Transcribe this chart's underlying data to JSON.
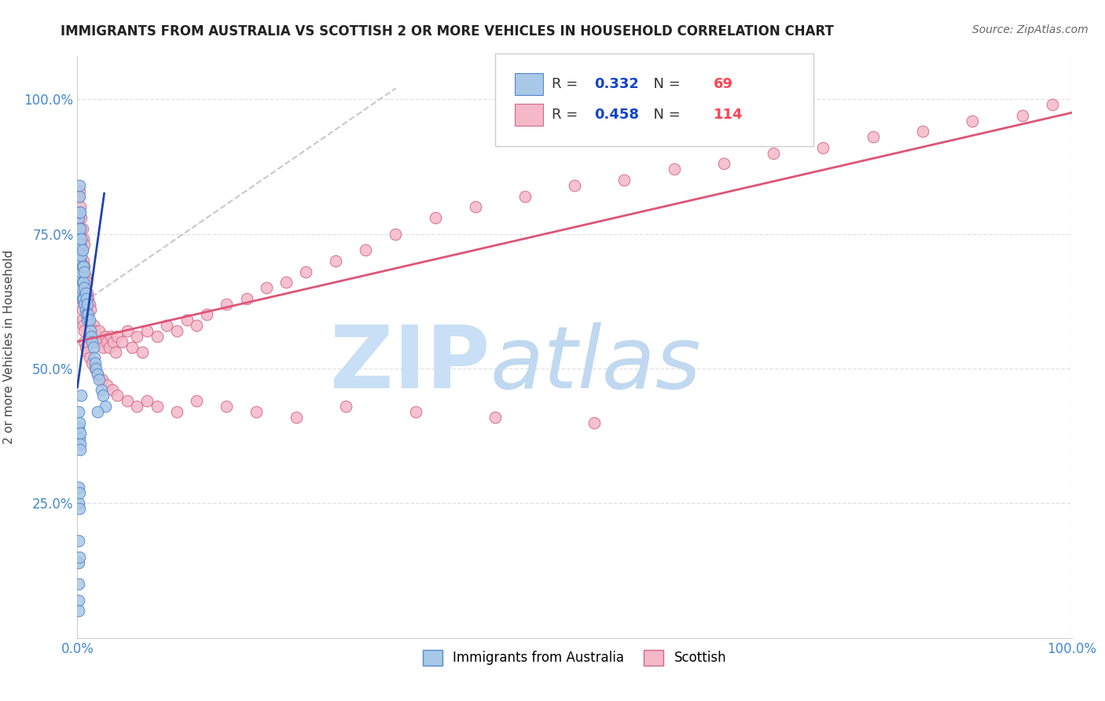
{
  "title": "IMMIGRANTS FROM AUSTRALIA VS SCOTTISH 2 OR MORE VEHICLES IN HOUSEHOLD CORRELATION CHART",
  "source": "Source: ZipAtlas.com",
  "ylabel": "2 or more Vehicles in Household",
  "R1": "0.332",
  "N1": "69",
  "R2": "0.458",
  "N2": "114",
  "color_blue_fill": "#a8c8e8",
  "color_blue_edge": "#5588cc",
  "color_pink_fill": "#f5b8c8",
  "color_pink_edge": "#d06888",
  "color_blue_line": "#2244aa",
  "color_pink_line": "#dd5577",
  "color_dashed": "#bbbbbb",
  "color_axis_label": "#4488cc",
  "color_title": "#222222",
  "color_source": "#666666",
  "color_grid": "#dddddd",
  "color_watermark_zip": "#c8dff5",
  "color_watermark_atlas": "#c0d8f0",
  "background_color": "#ffffff",
  "legend_label1": "Immigrants from Australia",
  "legend_label2": "Scottish",
  "aus_x": [
    0.001,
    0.001,
    0.001,
    0.001,
    0.002,
    0.002,
    0.002,
    0.002,
    0.002,
    0.002,
    0.003,
    0.003,
    0.003,
    0.003,
    0.003,
    0.003,
    0.004,
    0.004,
    0.004,
    0.004,
    0.005,
    0.005,
    0.005,
    0.005,
    0.006,
    0.006,
    0.006,
    0.007,
    0.007,
    0.007,
    0.008,
    0.008,
    0.009,
    0.009,
    0.01,
    0.01,
    0.011,
    0.012,
    0.013,
    0.014,
    0.015,
    0.016,
    0.017,
    0.018,
    0.019,
    0.02,
    0.022,
    0.024,
    0.026,
    0.028,
    0.001,
    0.001,
    0.002,
    0.002,
    0.003,
    0.003,
    0.003,
    0.001,
    0.001,
    0.002,
    0.002,
    0.004,
    0.02,
    0.001,
    0.001,
    0.002,
    0.001,
    0.001,
    0.001
  ],
  "aus_y": [
    0.68,
    0.72,
    0.75,
    0.78,
    0.7,
    0.73,
    0.76,
    0.79,
    0.82,
    0.84,
    0.64,
    0.67,
    0.7,
    0.73,
    0.76,
    0.79,
    0.65,
    0.68,
    0.71,
    0.74,
    0.63,
    0.66,
    0.69,
    0.72,
    0.63,
    0.66,
    0.69,
    0.62,
    0.65,
    0.68,
    0.61,
    0.64,
    0.6,
    0.63,
    0.59,
    0.62,
    0.6,
    0.59,
    0.57,
    0.56,
    0.55,
    0.54,
    0.52,
    0.51,
    0.5,
    0.49,
    0.48,
    0.46,
    0.45,
    0.43,
    0.42,
    0.39,
    0.4,
    0.37,
    0.38,
    0.36,
    0.35,
    0.28,
    0.25,
    0.27,
    0.24,
    0.45,
    0.42,
    0.18,
    0.14,
    0.15,
    0.1,
    0.07,
    0.05
  ],
  "scot_x": [
    0.001,
    0.001,
    0.002,
    0.002,
    0.002,
    0.003,
    0.003,
    0.003,
    0.004,
    0.004,
    0.004,
    0.005,
    0.005,
    0.005,
    0.006,
    0.006,
    0.006,
    0.007,
    0.007,
    0.007,
    0.008,
    0.008,
    0.009,
    0.009,
    0.01,
    0.01,
    0.011,
    0.011,
    0.012,
    0.012,
    0.013,
    0.013,
    0.014,
    0.015,
    0.016,
    0.017,
    0.018,
    0.019,
    0.02,
    0.021,
    0.022,
    0.024,
    0.026,
    0.028,
    0.03,
    0.032,
    0.034,
    0.036,
    0.038,
    0.04,
    0.045,
    0.05,
    0.055,
    0.06,
    0.065,
    0.07,
    0.08,
    0.09,
    0.1,
    0.11,
    0.12,
    0.13,
    0.15,
    0.17,
    0.19,
    0.21,
    0.23,
    0.26,
    0.29,
    0.32,
    0.36,
    0.4,
    0.45,
    0.5,
    0.55,
    0.6,
    0.65,
    0.7,
    0.75,
    0.8,
    0.85,
    0.9,
    0.95,
    0.98,
    0.003,
    0.004,
    0.005,
    0.005,
    0.006,
    0.007,
    0.007,
    0.008,
    0.01,
    0.012,
    0.015,
    0.018,
    0.02,
    0.025,
    0.03,
    0.035,
    0.04,
    0.05,
    0.06,
    0.07,
    0.08,
    0.1,
    0.12,
    0.15,
    0.18,
    0.22,
    0.27,
    0.34,
    0.42,
    0.52
  ],
  "scot_y": [
    0.78,
    0.82,
    0.75,
    0.79,
    0.83,
    0.72,
    0.76,
    0.8,
    0.7,
    0.74,
    0.78,
    0.68,
    0.72,
    0.76,
    0.67,
    0.7,
    0.74,
    0.65,
    0.69,
    0.73,
    0.63,
    0.67,
    0.62,
    0.66,
    0.6,
    0.64,
    0.59,
    0.63,
    0.58,
    0.62,
    0.57,
    0.61,
    0.56,
    0.57,
    0.58,
    0.57,
    0.56,
    0.55,
    0.56,
    0.55,
    0.57,
    0.55,
    0.54,
    0.56,
    0.55,
    0.54,
    0.56,
    0.55,
    0.53,
    0.56,
    0.55,
    0.57,
    0.54,
    0.56,
    0.53,
    0.57,
    0.56,
    0.58,
    0.57,
    0.59,
    0.58,
    0.6,
    0.62,
    0.63,
    0.65,
    0.66,
    0.68,
    0.7,
    0.72,
    0.75,
    0.78,
    0.8,
    0.82,
    0.84,
    0.85,
    0.87,
    0.88,
    0.9,
    0.91,
    0.93,
    0.94,
    0.96,
    0.97,
    0.99,
    0.65,
    0.63,
    0.61,
    0.59,
    0.58,
    0.57,
    0.55,
    0.54,
    0.53,
    0.52,
    0.51,
    0.5,
    0.49,
    0.48,
    0.47,
    0.46,
    0.45,
    0.44,
    0.43,
    0.44,
    0.43,
    0.42,
    0.44,
    0.43,
    0.42,
    0.41,
    0.43,
    0.42,
    0.41,
    0.4
  ],
  "aus_line_x": [
    0.0,
    0.027
  ],
  "aus_line_y": [
    0.465,
    0.825
  ],
  "scot_line_x": [
    0.0,
    1.0
  ],
  "scot_line_y": [
    0.55,
    0.975
  ],
  "dash_line_x": [
    0.0,
    0.32
  ],
  "dash_line_y": [
    0.615,
    1.02
  ],
  "xlim": [
    0.0,
    1.0
  ],
  "ylim": [
    0.0,
    1.08
  ],
  "xtick_pos": [
    0.0,
    1.0
  ],
  "xtick_labels": [
    "0.0%",
    "100.0%"
  ],
  "ytick_pos": [
    0.25,
    0.5,
    0.75,
    1.0
  ],
  "ytick_labels": [
    "25.0%",
    "50.0%",
    "75.0%",
    "100.0%"
  ]
}
